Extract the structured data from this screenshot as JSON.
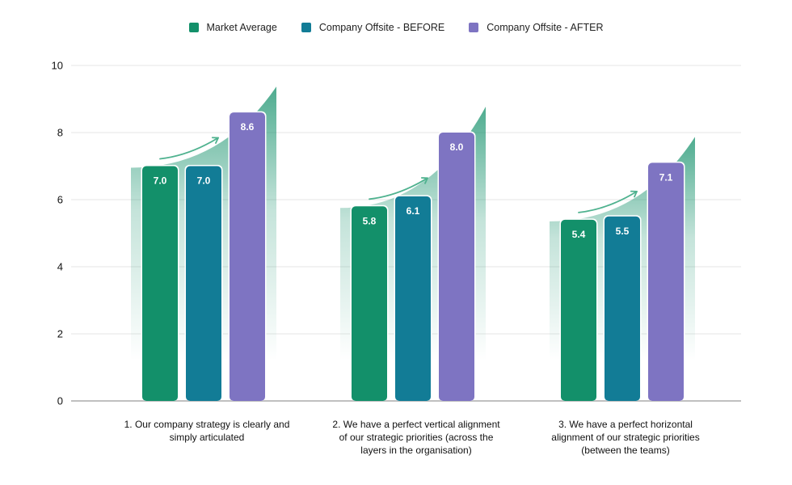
{
  "chart_data": {
    "type": "bar",
    "categories": [
      [
        "1. Our company strategy is clearly and",
        "simply articulated"
      ],
      [
        "2. We have a perfect vertical alignment",
        "of our strategic priorities (across the",
        "layers in the organisation)"
      ],
      [
        "3. We have a perfect horizontal",
        "alignment of our strategic priorities",
        "(between the teams)"
      ]
    ],
    "series": [
      {
        "name": "Market Average",
        "color": "#13906A",
        "values": [
          7.0,
          5.8,
          5.4
        ]
      },
      {
        "name": "Company Offsite - BEFORE",
        "color": "#127C96",
        "values": [
          7.0,
          6.1,
          5.5
        ]
      },
      {
        "name": "Company Offsite - AFTER",
        "color": "#7E74C2",
        "values": [
          8.6,
          8.0,
          7.1
        ]
      }
    ],
    "value_labels": [
      [
        "7.0",
        "5.8",
        "5.4"
      ],
      [
        "7.0",
        "6.1",
        "5.5"
      ],
      [
        "8.6",
        "8.0",
        "7.1"
      ]
    ],
    "ylim": [
      0,
      10
    ],
    "yticks": [
      "0",
      "2",
      "4",
      "6",
      "8",
      "10"
    ],
    "grid": true,
    "legend_position": "top-center",
    "title": "",
    "xlabel": "",
    "ylabel": ""
  }
}
